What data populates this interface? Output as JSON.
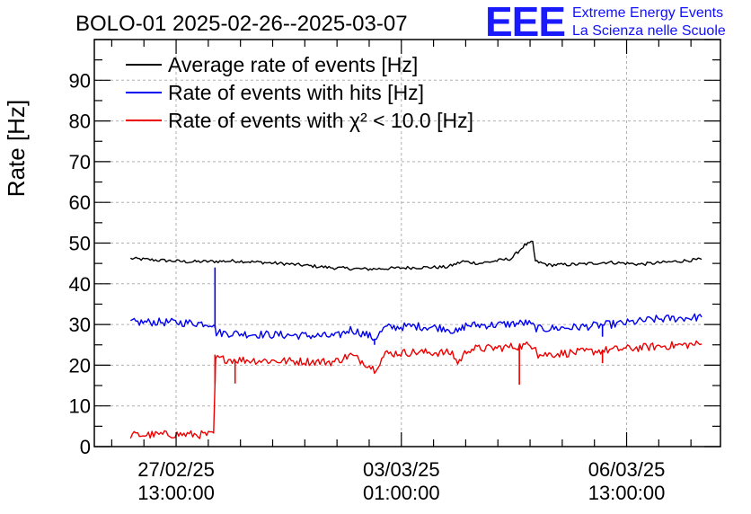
{
  "chart_data": {
    "type": "line",
    "title": "BOLO-01 2025-02-26--2025-03-07",
    "xlabel": "",
    "ylabel": "Rate [Hz]",
    "ylim": [
      0,
      100
    ],
    "xlim": [
      "2025-02-26 06:30",
      "2025-03-08 00:00"
    ],
    "yticks": [
      0,
      10,
      20,
      30,
      40,
      50,
      60,
      70,
      80,
      90
    ],
    "xticks": [
      {
        "x": "2025-02-27 13:00",
        "date": "27/02/25",
        "time": "13:00:00"
      },
      {
        "x": "2025-03-03 01:00",
        "date": "03/03/25",
        "time": "01:00:00"
      },
      {
        "x": "2025-03-06 13:00",
        "date": "06/03/25",
        "time": "13:00:00"
      }
    ],
    "grid": true,
    "legend_position": "top-left",
    "series": [
      {
        "name": "Average rate of events [Hz]",
        "color": "#000000",
        "noise": 0.4,
        "points": [
          [
            "2025-02-26 20:00",
            46.2
          ],
          [
            "2025-02-27 06:00",
            45.8
          ],
          [
            "2025-02-27 18:00",
            45.4
          ],
          [
            "2025-02-28 12:00",
            45.6
          ],
          [
            "2025-03-01 06:00",
            44.9
          ],
          [
            "2025-03-02 00:00",
            43.9
          ],
          [
            "2025-03-02 12:00",
            43.6
          ],
          [
            "2025-03-03 06:00",
            44.0
          ],
          [
            "2025-03-03 18:00",
            44.1
          ],
          [
            "2025-03-04 00:00",
            45.5
          ],
          [
            "2025-03-04 06:00",
            45.0
          ],
          [
            "2025-03-04 18:00",
            46.2
          ],
          [
            "2025-03-04 23:00",
            49.5
          ],
          [
            "2025-03-05 02:00",
            50.2
          ],
          [
            "2025-03-05 03:00",
            45.5
          ],
          [
            "2025-03-05 08:00",
            44.6
          ],
          [
            "2025-03-05 20:00",
            44.8
          ],
          [
            "2025-03-06 06:00",
            45.3
          ],
          [
            "2025-03-06 18:00",
            44.8
          ],
          [
            "2025-03-07 06:00",
            45.4
          ],
          [
            "2025-03-07 17:00",
            46.0
          ]
        ],
        "spikes": []
      },
      {
        "name": "Rate of events with hits [Hz]",
        "color": "#0000ee",
        "noise": 1.0,
        "points": [
          [
            "2025-02-26 20:00",
            30.5
          ],
          [
            "2025-02-27 06:00",
            30.6
          ],
          [
            "2025-02-27 18:00",
            30.4
          ],
          [
            "2025-02-28 03:00",
            30.2
          ],
          [
            "2025-02-28 04:00",
            28.0
          ],
          [
            "2025-02-28 18:00",
            27.6
          ],
          [
            "2025-03-01 12:00",
            27.3
          ],
          [
            "2025-03-02 01:00",
            27.1
          ],
          [
            "2025-03-02 06:00",
            28.8
          ],
          [
            "2025-03-02 12:00",
            27.5
          ],
          [
            "2025-03-02 15:00",
            26.5
          ],
          [
            "2025-03-02 19:00",
            29.2
          ],
          [
            "2025-03-03 06:00",
            29.6
          ],
          [
            "2025-03-03 18:00",
            29.1
          ],
          [
            "2025-03-03 22:00",
            28.0
          ],
          [
            "2025-03-04 01:00",
            29.8
          ],
          [
            "2025-03-04 12:00",
            29.9
          ],
          [
            "2025-03-05 00:00",
            30.4
          ],
          [
            "2025-03-05 04:00",
            28.9
          ],
          [
            "2025-03-05 18:00",
            29.3
          ],
          [
            "2025-03-06 12:00",
            30.3
          ],
          [
            "2025-03-07 00:00",
            31.3
          ],
          [
            "2025-03-07 17:00",
            31.8
          ]
        ],
        "spikes": [
          [
            "2025-02-28 03:30",
            44.0
          ],
          [
            "2025-03-02 15:00",
            25.0
          ],
          [
            "2025-03-06 04:00",
            27.0
          ]
        ]
      },
      {
        "name": "Rate of events with χ² < 10.0 [Hz]",
        "color": "#ee0000",
        "noise": 1.0,
        "points": [
          [
            "2025-02-26 20:00",
            2.8
          ],
          [
            "2025-02-27 12:00",
            3.0
          ],
          [
            "2025-02-28 03:00",
            2.9
          ],
          [
            "2025-02-28 03:45",
            21.6
          ],
          [
            "2025-02-28 12:00",
            21.3
          ],
          [
            "2025-03-01 06:00",
            21.0
          ],
          [
            "2025-03-02 00:00",
            20.8
          ],
          [
            "2025-03-02 06:00",
            22.5
          ],
          [
            "2025-03-02 11:00",
            20.8
          ],
          [
            "2025-03-02 15:00",
            19.0
          ],
          [
            "2025-03-02 19:00",
            22.8
          ],
          [
            "2025-03-03 06:00",
            23.2
          ],
          [
            "2025-03-03 20:00",
            23.0
          ],
          [
            "2025-03-03 22:00",
            20.5
          ],
          [
            "2025-03-04 02:00",
            24.0
          ],
          [
            "2025-03-04 12:00",
            24.2
          ],
          [
            "2025-03-05 03:00",
            25.0
          ],
          [
            "2025-03-05 04:00",
            22.5
          ],
          [
            "2025-03-05 20:00",
            23.2
          ],
          [
            "2025-03-06 12:00",
            24.0
          ],
          [
            "2025-03-07 00:00",
            24.6
          ],
          [
            "2025-03-07 17:00",
            25.2
          ]
        ],
        "spikes": [
          [
            "2025-02-28 03:30",
            22.6
          ],
          [
            "2025-02-28 11:00",
            15.5
          ],
          [
            "2025-03-04 21:00",
            15.2
          ],
          [
            "2025-03-06 04:00",
            20.5
          ]
        ]
      }
    ]
  },
  "logo": {
    "big_text": "EEE",
    "line1": "Extreme Energy Events",
    "line2": "La Scienza nelle Scuole"
  }
}
